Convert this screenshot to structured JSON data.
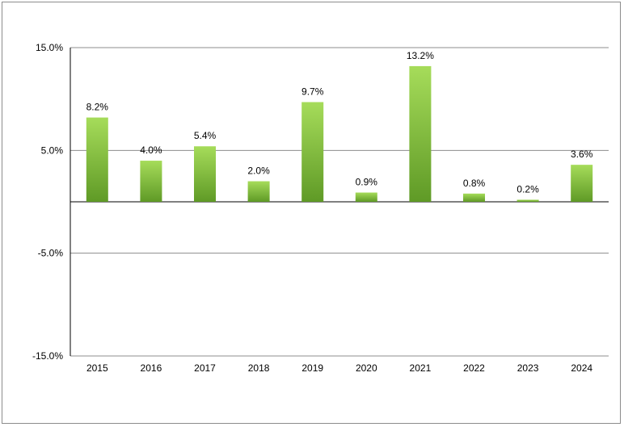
{
  "chart_data": {
    "type": "bar",
    "categories": [
      "2015",
      "2016",
      "2017",
      "2018",
      "2019",
      "2020",
      "2021",
      "2022",
      "2023",
      "2024"
    ],
    "values": [
      8.2,
      4.0,
      5.4,
      2.0,
      9.7,
      0.9,
      13.2,
      0.8,
      0.2,
      3.6
    ],
    "data_labels": [
      "8.2%",
      "4.0%",
      "5.4%",
      "2.0%",
      "9.7%",
      "0.9%",
      "13.2%",
      "0.8%",
      "0.2%",
      "3.6%"
    ],
    "yticks": [
      15,
      5,
      -5,
      -15
    ],
    "ytick_labels": [
      "15.0%",
      "5.0%",
      "-5.0%",
      "-15.0%"
    ],
    "ylim": [
      -15,
      15
    ],
    "title": "",
    "xlabel": "",
    "ylabel": "",
    "grid": true,
    "legend": "none",
    "colors": {
      "bar_top": "#a6dc5a",
      "bar_bottom": "#5f9a26",
      "gridline": "#8c8c8c",
      "axis": "#000000"
    }
  }
}
